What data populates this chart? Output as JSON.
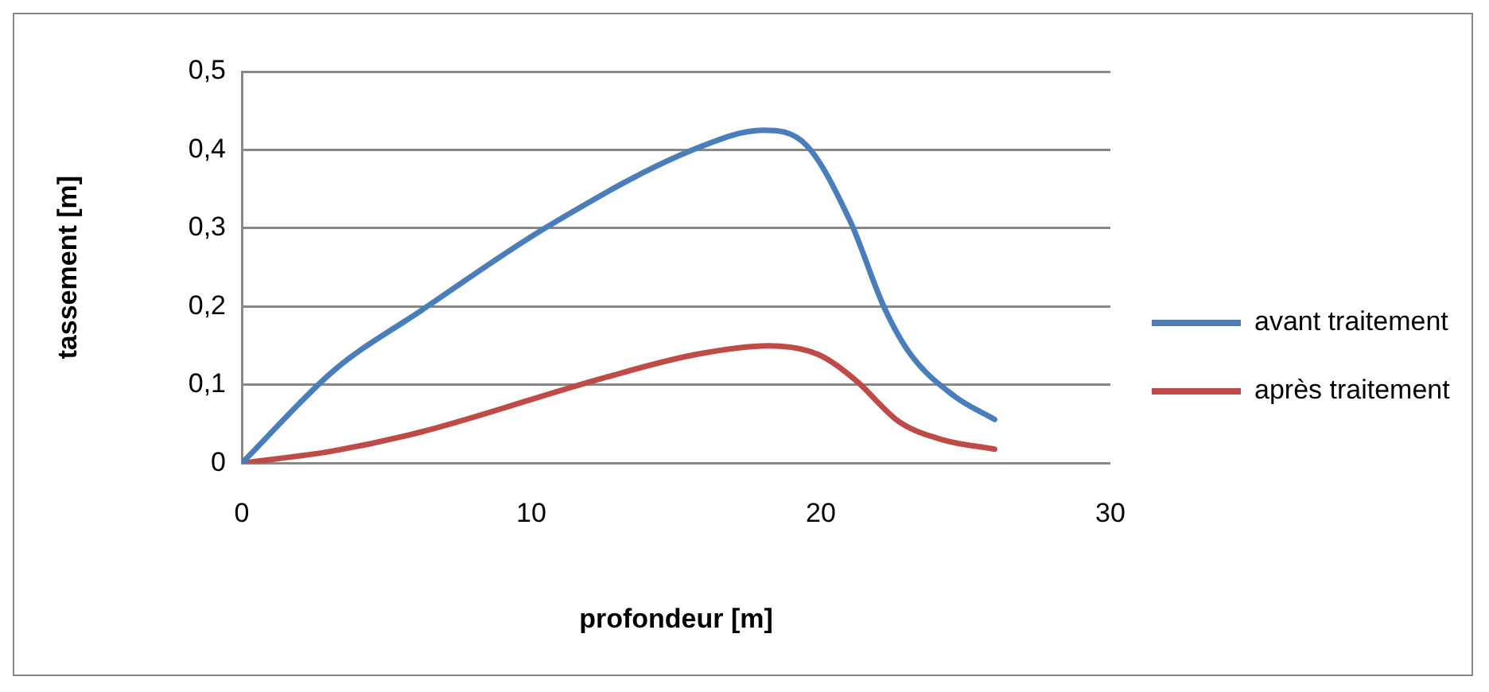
{
  "chart_data": {
    "type": "line",
    "xlabel": "profondeur [m]",
    "ylabel": "tassement [m]",
    "xlim": [
      0,
      30
    ],
    "xticks": [
      0,
      10,
      20,
      30
    ],
    "ylim": [
      0,
      0.5
    ],
    "yticks": [
      {
        "value": 0,
        "label": "0"
      },
      {
        "value": 0.1,
        "label": "0,1"
      },
      {
        "value": 0.2,
        "label": "0,2"
      },
      {
        "value": 0.3,
        "label": "0,3"
      },
      {
        "value": 0.4,
        "label": "0,4"
      },
      {
        "value": 0.5,
        "label": "0,5"
      }
    ],
    "grid": "y",
    "legend": "right",
    "marker": "none",
    "series": [
      {
        "name": "avant traitement",
        "color": "#4a7ebb",
        "x": [
          0,
          3.2,
          6.2,
          10.6,
          15.7,
          18,
          19.5,
          21,
          22.2,
          23.1,
          24.6,
          26
        ],
        "values": [
          0,
          0.119,
          0.195,
          0.303,
          0.402,
          0.425,
          0.406,
          0.31,
          0.198,
          0.139,
          0.086,
          0.056
        ]
      },
      {
        "name": "après traitement",
        "color": "#be4b48",
        "x": [
          0,
          3.2,
          6.2,
          12.5,
          15.7,
          18.2,
          19.9,
          21.2,
          22.7,
          24.2,
          26
        ],
        "values": [
          0,
          0.016,
          0.04,
          0.109,
          0.139,
          0.15,
          0.139,
          0.106,
          0.053,
          0.03,
          0.018
        ]
      }
    ]
  }
}
